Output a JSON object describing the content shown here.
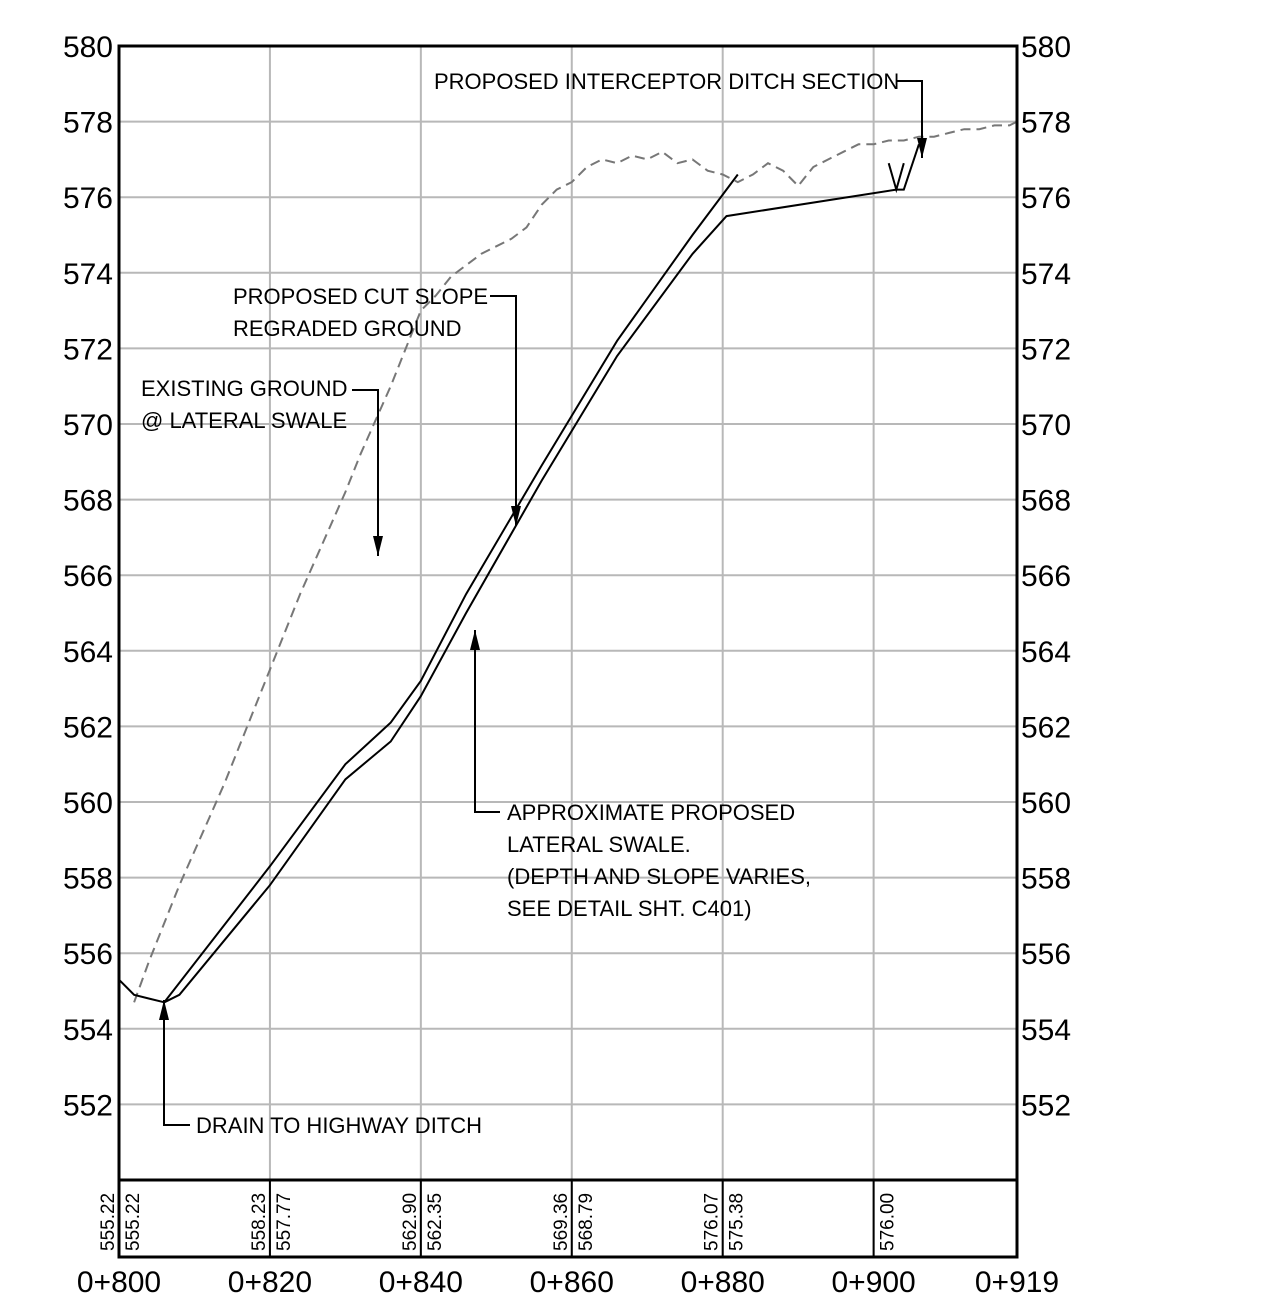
{
  "chart_data": {
    "type": "line",
    "title": "",
    "xlabel": "",
    "ylabel": "",
    "xlim": [
      800,
      919
    ],
    "ylim": [
      550,
      580
    ],
    "x_ticks": [
      {
        "value": 800,
        "label": "0+800"
      },
      {
        "value": 820,
        "label": "0+820"
      },
      {
        "value": 840,
        "label": "0+840"
      },
      {
        "value": 860,
        "label": "0+860"
      },
      {
        "value": 880,
        "label": "0+880"
      },
      {
        "value": 900,
        "label": "0+900"
      },
      {
        "value": 919,
        "label": "0+919"
      }
    ],
    "y_ticks": [
      552,
      554,
      556,
      558,
      560,
      562,
      564,
      566,
      568,
      570,
      572,
      574,
      576,
      578,
      580
    ],
    "grid": true,
    "series": [
      {
        "key": "existing",
        "style": "dashed",
        "color": "#777777",
        "x": [
          802,
          804,
          806,
          808,
          810,
          812,
          814,
          816,
          818,
          820,
          822,
          824,
          826,
          828,
          830,
          832,
          834,
          836,
          838,
          840,
          842,
          844,
          846,
          848,
          850,
          852,
          854,
          856,
          858,
          860,
          862,
          864,
          866,
          868,
          870,
          872,
          874,
          876,
          878,
          880,
          882,
          884,
          886,
          888,
          890,
          892,
          894,
          896,
          898,
          900,
          902,
          904,
          906,
          908,
          910,
          912,
          914,
          916,
          918,
          919
        ],
        "y": [
          554.7,
          555.8,
          556.8,
          557.8,
          558.7,
          559.6,
          560.5,
          561.5,
          562.5,
          563.5,
          564.5,
          565.5,
          566.4,
          567.3,
          568.2,
          569.2,
          570.1,
          571.0,
          572.0,
          573.0,
          573.4,
          573.9,
          574.2,
          574.5,
          574.7,
          574.9,
          575.2,
          575.8,
          576.2,
          576.4,
          576.8,
          577.0,
          576.9,
          577.1,
          577.0,
          577.2,
          576.9,
          577.0,
          576.7,
          576.6,
          576.4,
          576.6,
          576.9,
          576.7,
          576.3,
          576.8,
          577.0,
          577.2,
          577.4,
          577.4,
          577.5,
          577.5,
          577.6,
          577.6,
          577.7,
          577.8,
          577.8,
          577.9,
          577.9,
          578.0
        ]
      },
      {
        "key": "proposed_top",
        "style": "solid",
        "color": "#000000",
        "x": [
          800,
          802,
          804,
          806,
          820,
          830,
          836,
          840,
          846,
          856,
          866,
          876,
          882
        ],
        "y": [
          555.3,
          554.9,
          554.8,
          554.7,
          558.3,
          561.0,
          562.1,
          563.2,
          565.5,
          568.9,
          572.2,
          575.0,
          576.6
        ]
      },
      {
        "key": "proposed_bottom",
        "style": "solid",
        "color": "#000000",
        "x": [
          806,
          808,
          820,
          830,
          836,
          840,
          846,
          856,
          866,
          876,
          880.5,
          903,
          904,
          906
        ],
        "y": [
          554.7,
          554.9,
          557.8,
          560.6,
          561.6,
          562.8,
          565.0,
          568.5,
          571.8,
          574.5,
          575.5,
          576.2,
          576.2,
          577.4
        ]
      },
      {
        "key": "interceptor_ditch",
        "style": "solid",
        "color": "#000000",
        "x": [
          902,
          903,
          904
        ],
        "y": [
          576.9,
          576.2,
          576.9
        ]
      }
    ],
    "annotations": [
      {
        "key": "interceptor",
        "lines": [
          "PROPOSED INTERCEPTOR DITCH SECTION"
        ],
        "target_x": 903,
        "target_y": 576.3
      },
      {
        "key": "cut_slope",
        "lines": [
          "PROPOSED CUT SLOPE",
          "REGRADED GROUND"
        ],
        "target_x": 852.5,
        "target_y": 567.2
      },
      {
        "key": "existing_ground",
        "lines": [
          "EXISTING GROUND",
          "@ LATERAL SWALE"
        ],
        "target_x": 834,
        "target_y": 566.4
      },
      {
        "key": "lateral_swale",
        "lines": [
          "APPROXIMATE PROPOSED",
          "LATERAL SWALE.",
          "(DEPTH AND SLOPE VARIES,",
          "SEE DETAIL SHT. C401)"
        ],
        "target_x": 847,
        "target_y": 564.6
      },
      {
        "key": "drain",
        "lines": [
          "DRAIN TO HIGHWAY DITCH"
        ],
        "target_x": 806,
        "target_y": 554.7
      }
    ],
    "elevation_table": [
      {
        "station": 800,
        "left": "555.22",
        "right": "555.22"
      },
      {
        "station": 820,
        "left": "558.23",
        "right": "557.77"
      },
      {
        "station": 840,
        "left": "562.90",
        "right": "562.35"
      },
      {
        "station": 860,
        "left": "569.36",
        "right": "568.79"
      },
      {
        "station": 880,
        "left": "576.07",
        "right": "575.38"
      },
      {
        "station": 900,
        "left": "",
        "right": "576.00"
      }
    ]
  }
}
